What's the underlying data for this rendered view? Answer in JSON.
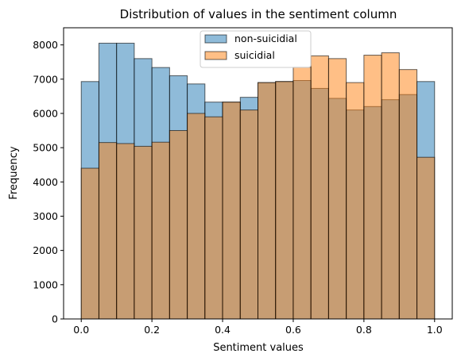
{
  "chart_data": {
    "type": "bar",
    "title": "Distribution of values in the sentiment column",
    "xlabel": "Sentiment values",
    "ylabel": "Frequency",
    "xlim": [
      -0.05,
      1.05
    ],
    "ylim": [
      0,
      8500
    ],
    "xticks": [
      0.0,
      0.2,
      0.4,
      0.6,
      0.8,
      1.0
    ],
    "xtick_labels": [
      "0.0",
      "0.2",
      "0.4",
      "0.6",
      "0.8",
      "1.0"
    ],
    "yticks": [
      0,
      1000,
      2000,
      3000,
      4000,
      5000,
      6000,
      7000,
      8000
    ],
    "ytick_labels": [
      "0",
      "1000",
      "2000",
      "3000",
      "4000",
      "5000",
      "6000",
      "7000",
      "8000"
    ],
    "bin_edges": [
      0.0,
      0.05,
      0.1,
      0.15,
      0.2,
      0.25,
      0.3,
      0.35,
      0.4,
      0.45,
      0.5,
      0.55,
      0.6,
      0.65,
      0.7,
      0.75,
      0.8,
      0.85,
      0.9,
      0.95,
      1.0
    ],
    "grid": false,
    "legend_position": "top-center",
    "series": [
      {
        "name": "non-suicidial",
        "color": "#1f77b4",
        "values": [
          6930,
          8050,
          8050,
          7600,
          7340,
          7100,
          6860,
          6330,
          6330,
          6470,
          6900,
          6930,
          6960,
          6730,
          6440,
          6100,
          6200,
          6400,
          6550,
          6930
        ]
      },
      {
        "name": "suicidial",
        "color": "#ff7f0e",
        "values": [
          4400,
          5150,
          5120,
          5040,
          5160,
          5500,
          6000,
          5900,
          6330,
          6100,
          6900,
          6930,
          7350,
          7680,
          7600,
          6900,
          7700,
          7770,
          7280,
          4720
        ]
      }
    ]
  }
}
